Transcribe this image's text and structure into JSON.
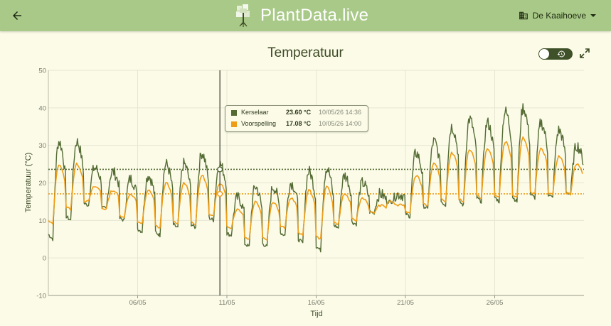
{
  "app": {
    "name": "PlantData.live"
  },
  "location": {
    "name": "De Kaaihoeve"
  },
  "header": {
    "back_icon": "arrow-left-icon",
    "building_icon": "building-icon",
    "caret_icon": "caret-down-icon"
  },
  "chart_controls": {
    "history_icon": "history-icon",
    "expand_icon": "expand-icon",
    "toggle_on": false
  },
  "colors": {
    "kerselaar": "#546b34",
    "voorspelling": "#ef9d17",
    "topbar": "#a8c987",
    "background": "#fbfbe8"
  },
  "tooltip": {
    "rows": [
      {
        "name": "Kerselaar",
        "value": "23.60 °C",
        "time": "10/05/26 14:36"
      },
      {
        "name": "Voorspelling",
        "value": "17.08 °C",
        "time": "10/05/26 14:00"
      }
    ]
  },
  "chart_data": {
    "type": "line",
    "title": "Temperatuur",
    "xlabel": "Tijd",
    "ylabel": "Temperatuur (°C)",
    "ylim": [
      -10,
      50
    ],
    "yticks": [
      -10,
      0,
      10,
      20,
      30,
      40,
      50
    ],
    "xlim": [
      "2026-05-01",
      "2026-05-31"
    ],
    "xticks": [
      {
        "label": "06/05",
        "date": "2026-05-06"
      },
      {
        "label": "11/05",
        "date": "2026-05-11"
      },
      {
        "label": "16/05",
        "date": "2026-05-16"
      },
      {
        "label": "21/05",
        "date": "2026-05-21"
      },
      {
        "label": "26/05",
        "date": "2026-05-26"
      }
    ],
    "grid": true,
    "cursor": {
      "date": "2026-05-10",
      "time": "14:36"
    },
    "reference_lines": [
      {
        "series": "Kerselaar",
        "value": 23.6
      },
      {
        "series": "Voorspelling",
        "value": 17.08
      }
    ],
    "series": [
      {
        "name": "Kerselaar",
        "daily_min": [
          5,
          10,
          14,
          13,
          10,
          7,
          6,
          8,
          8,
          10,
          6,
          3,
          3,
          6,
          4,
          2,
          8,
          9,
          12,
          15,
          11,
          13,
          14,
          14,
          15,
          15,
          15,
          16,
          16,
          17
        ],
        "daily_max": [
          31,
          31,
          24,
          23,
          21,
          22,
          25,
          25,
          28,
          25,
          16,
          19,
          19,
          20,
          23,
          24,
          22,
          20,
          17,
          17,
          28,
          31,
          35,
          37,
          36,
          39,
          40,
          36,
          34,
          30
        ]
      },
      {
        "name": "Voorspelling",
        "daily_min": [
          9,
          13,
          15,
          13,
          11,
          9,
          8,
          9,
          9,
          11,
          8,
          5,
          5,
          8,
          6,
          5,
          9,
          10,
          12,
          15,
          12,
          14,
          15,
          15,
          16,
          16,
          16,
          17,
          17,
          17
        ],
        "daily_max": [
          25,
          25,
          19,
          18,
          17,
          18,
          20,
          20,
          22,
          20,
          13,
          15,
          15,
          16,
          18,
          19,
          17,
          16,
          14,
          14,
          22,
          25,
          28,
          29,
          29,
          31,
          32,
          29,
          27,
          25
        ]
      }
    ]
  }
}
